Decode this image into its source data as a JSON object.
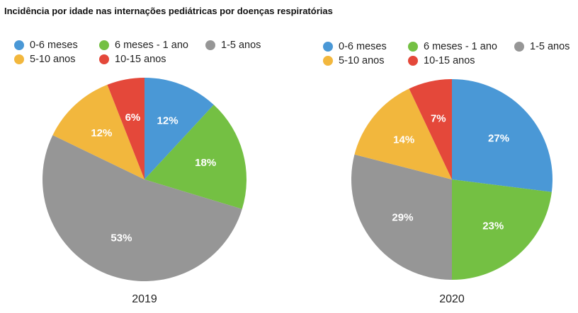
{
  "page_title": "Incidência por idade nas internações pediátricas por doenças respiratórias",
  "legend": [
    {
      "label": "0-6 meses",
      "color": "#4A98D6"
    },
    {
      "label": "6 meses - 1 ano",
      "color": "#74C043"
    },
    {
      "label": "1-5 anos",
      "color": "#969696"
    },
    {
      "label": "5-10 anos",
      "color": "#F2B73D"
    },
    {
      "label": "10-15 anos",
      "color": "#E4483A"
    }
  ],
  "chart_data": [
    {
      "type": "pie",
      "title": "2019",
      "categories": [
        "0-6 meses",
        "6 meses - 1 ano",
        "1-5 anos",
        "5-10 anos",
        "10-15 anos"
      ],
      "values": [
        12,
        18,
        53,
        12,
        6
      ],
      "labels": [
        "12%",
        "18%",
        "53%",
        "12%",
        "6%"
      ],
      "colors": [
        "#4A98D6",
        "#74C043",
        "#969696",
        "#F2B73D",
        "#E4483A"
      ],
      "start_angle": "12 o'clock",
      "direction": "clockwise"
    },
    {
      "type": "pie",
      "title": "2020",
      "categories": [
        "0-6 meses",
        "6 meses - 1 ano",
        "1-5 anos",
        "5-10 anos",
        "10-15 anos"
      ],
      "values": [
        27,
        23,
        29,
        14,
        7
      ],
      "labels": [
        "27%",
        "23%",
        "29%",
        "14%",
        "7%"
      ],
      "colors": [
        "#4A98D6",
        "#74C043",
        "#969696",
        "#F2B73D",
        "#E4483A"
      ],
      "start_angle": "12 o'clock",
      "direction": "clockwise"
    }
  ]
}
